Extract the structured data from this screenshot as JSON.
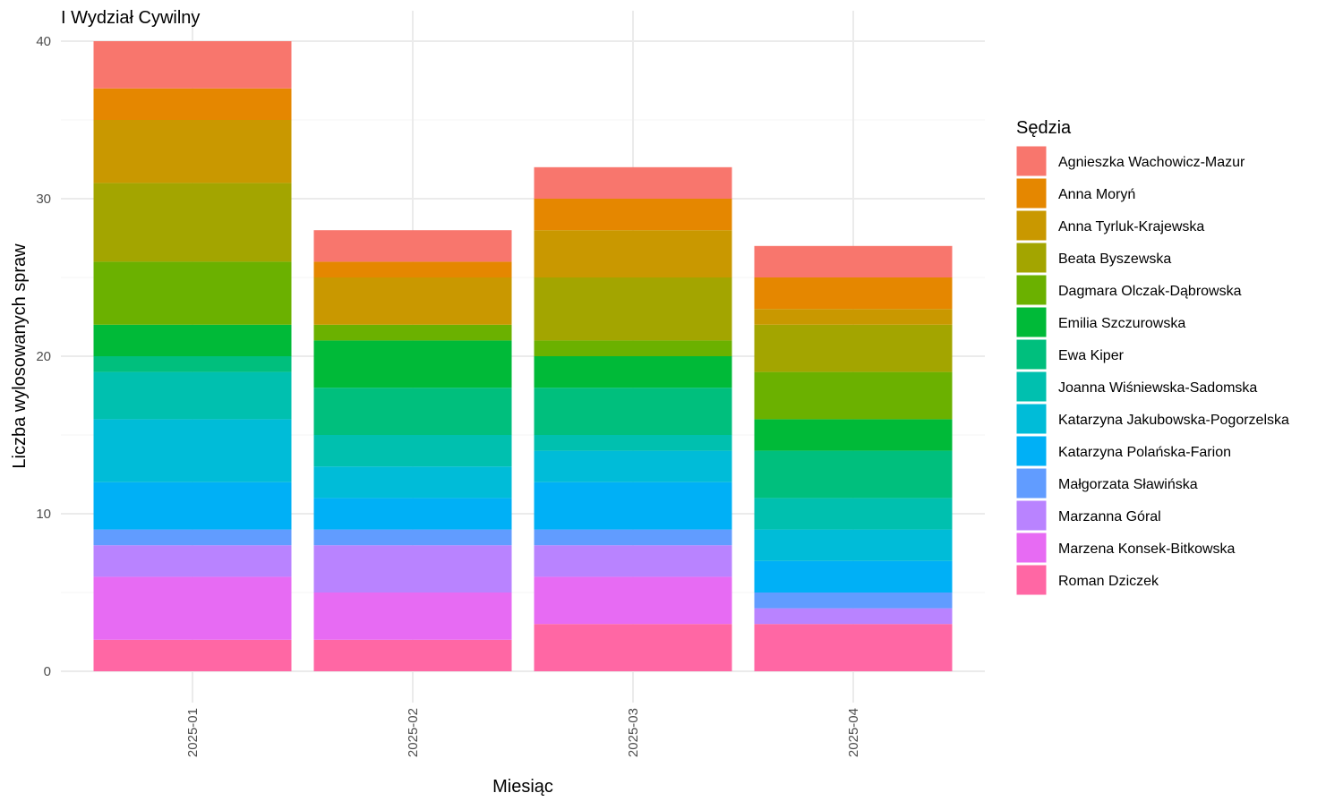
{
  "chart_data": {
    "type": "bar",
    "stacked": true,
    "title": "I Wydział Cywilny",
    "xlabel": "Miesiąc",
    "ylabel": "Liczba wylosowanych spraw",
    "ylim": [
      0,
      40
    ],
    "yticks": [
      0,
      10,
      20,
      30,
      40
    ],
    "grid": true,
    "legend_title": "Sędzia",
    "legend_position": "right",
    "categories": [
      "2025-01",
      "2025-02",
      "2025-03",
      "2025-04"
    ],
    "series": [
      {
        "name": "Agnieszka Wachowicz-Mazur",
        "color": "#F8766D",
        "values": [
          3,
          2,
          2,
          2
        ]
      },
      {
        "name": "Anna Moryń",
        "color": "#E58700",
        "values": [
          2,
          1,
          2,
          2
        ]
      },
      {
        "name": "Anna Tyrluk-Krajewska",
        "color": "#C99800",
        "values": [
          4,
          3,
          3,
          1
        ]
      },
      {
        "name": "Beata Byszewska",
        "color": "#A3A500",
        "values": [
          5,
          0,
          4,
          3
        ]
      },
      {
        "name": "Dagmara Olczak-Dąbrowska",
        "color": "#6BB100",
        "values": [
          4,
          1,
          1,
          3
        ]
      },
      {
        "name": "Emilia Szczurowska",
        "color": "#00BA38",
        "values": [
          2,
          3,
          2,
          2
        ]
      },
      {
        "name": "Ewa Kiper",
        "color": "#00BF7D",
        "values": [
          1,
          3,
          3,
          3
        ]
      },
      {
        "name": "Joanna Wiśniewska-Sadomska",
        "color": "#00C0AF",
        "values": [
          3,
          2,
          1,
          2
        ]
      },
      {
        "name": "Katarzyna Jakubowska-Pogorzelska",
        "color": "#00BCD8",
        "values": [
          4,
          2,
          2,
          2
        ]
      },
      {
        "name": "Katarzyna Polańska-Farion",
        "color": "#00B0F6",
        "values": [
          3,
          2,
          3,
          2
        ]
      },
      {
        "name": "Małgorzata Sławińska",
        "color": "#619CFF",
        "values": [
          1,
          1,
          1,
          1
        ]
      },
      {
        "name": "Marzanna Góral",
        "color": "#B983FF",
        "values": [
          2,
          3,
          2,
          1
        ]
      },
      {
        "name": "Marzena Konsek-Bitkowska",
        "color": "#E76BF3",
        "values": [
          4,
          3,
          3,
          0
        ]
      },
      {
        "name": "Roman Dziczek",
        "color": "#FF67A4",
        "values": [
          2,
          2,
          3,
          3
        ]
      }
    ]
  }
}
